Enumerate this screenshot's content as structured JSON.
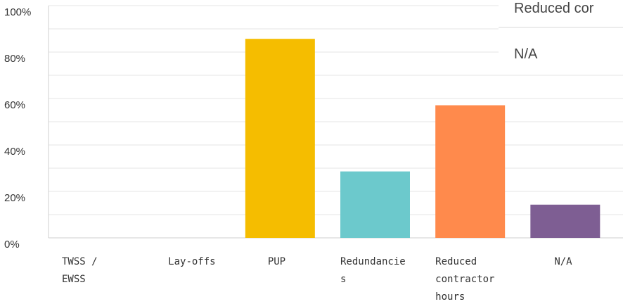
{
  "chart_data": {
    "type": "bar",
    "ylim": [
      0,
      100
    ],
    "y_ticks": [
      "0%",
      "20%",
      "40%",
      "60%",
      "80%",
      "100%"
    ],
    "y_tick_values": [
      0,
      20,
      40,
      60,
      80,
      100
    ],
    "grid": true,
    "categories": [
      {
        "label_lines": [
          "TWSS /",
          "EWSS"
        ],
        "value": 0,
        "color": "#f5bd00"
      },
      {
        "label_lines": [
          "Lay-offs"
        ],
        "value": 0,
        "color": "#f5bd00"
      },
      {
        "label_lines": [
          "PUP"
        ],
        "value": 85.7,
        "color": "#f5bd00"
      },
      {
        "label_lines": [
          "Redundancie",
          "s"
        ],
        "value": 28.6,
        "color": "#6cc9cc"
      },
      {
        "label_lines": [
          "Reduced",
          "contractor",
          "hours"
        ],
        "value": 57.1,
        "color": "#ff8a4c"
      },
      {
        "label_lines": [
          "N/A"
        ],
        "value": 14.3,
        "color": "#7e5e93"
      }
    ]
  },
  "tooltip": {
    "rows": [
      "Reduced cor",
      "N/A"
    ]
  },
  "colors": {
    "grid": "#e6e6e6",
    "axis": "#cfcfcf"
  }
}
